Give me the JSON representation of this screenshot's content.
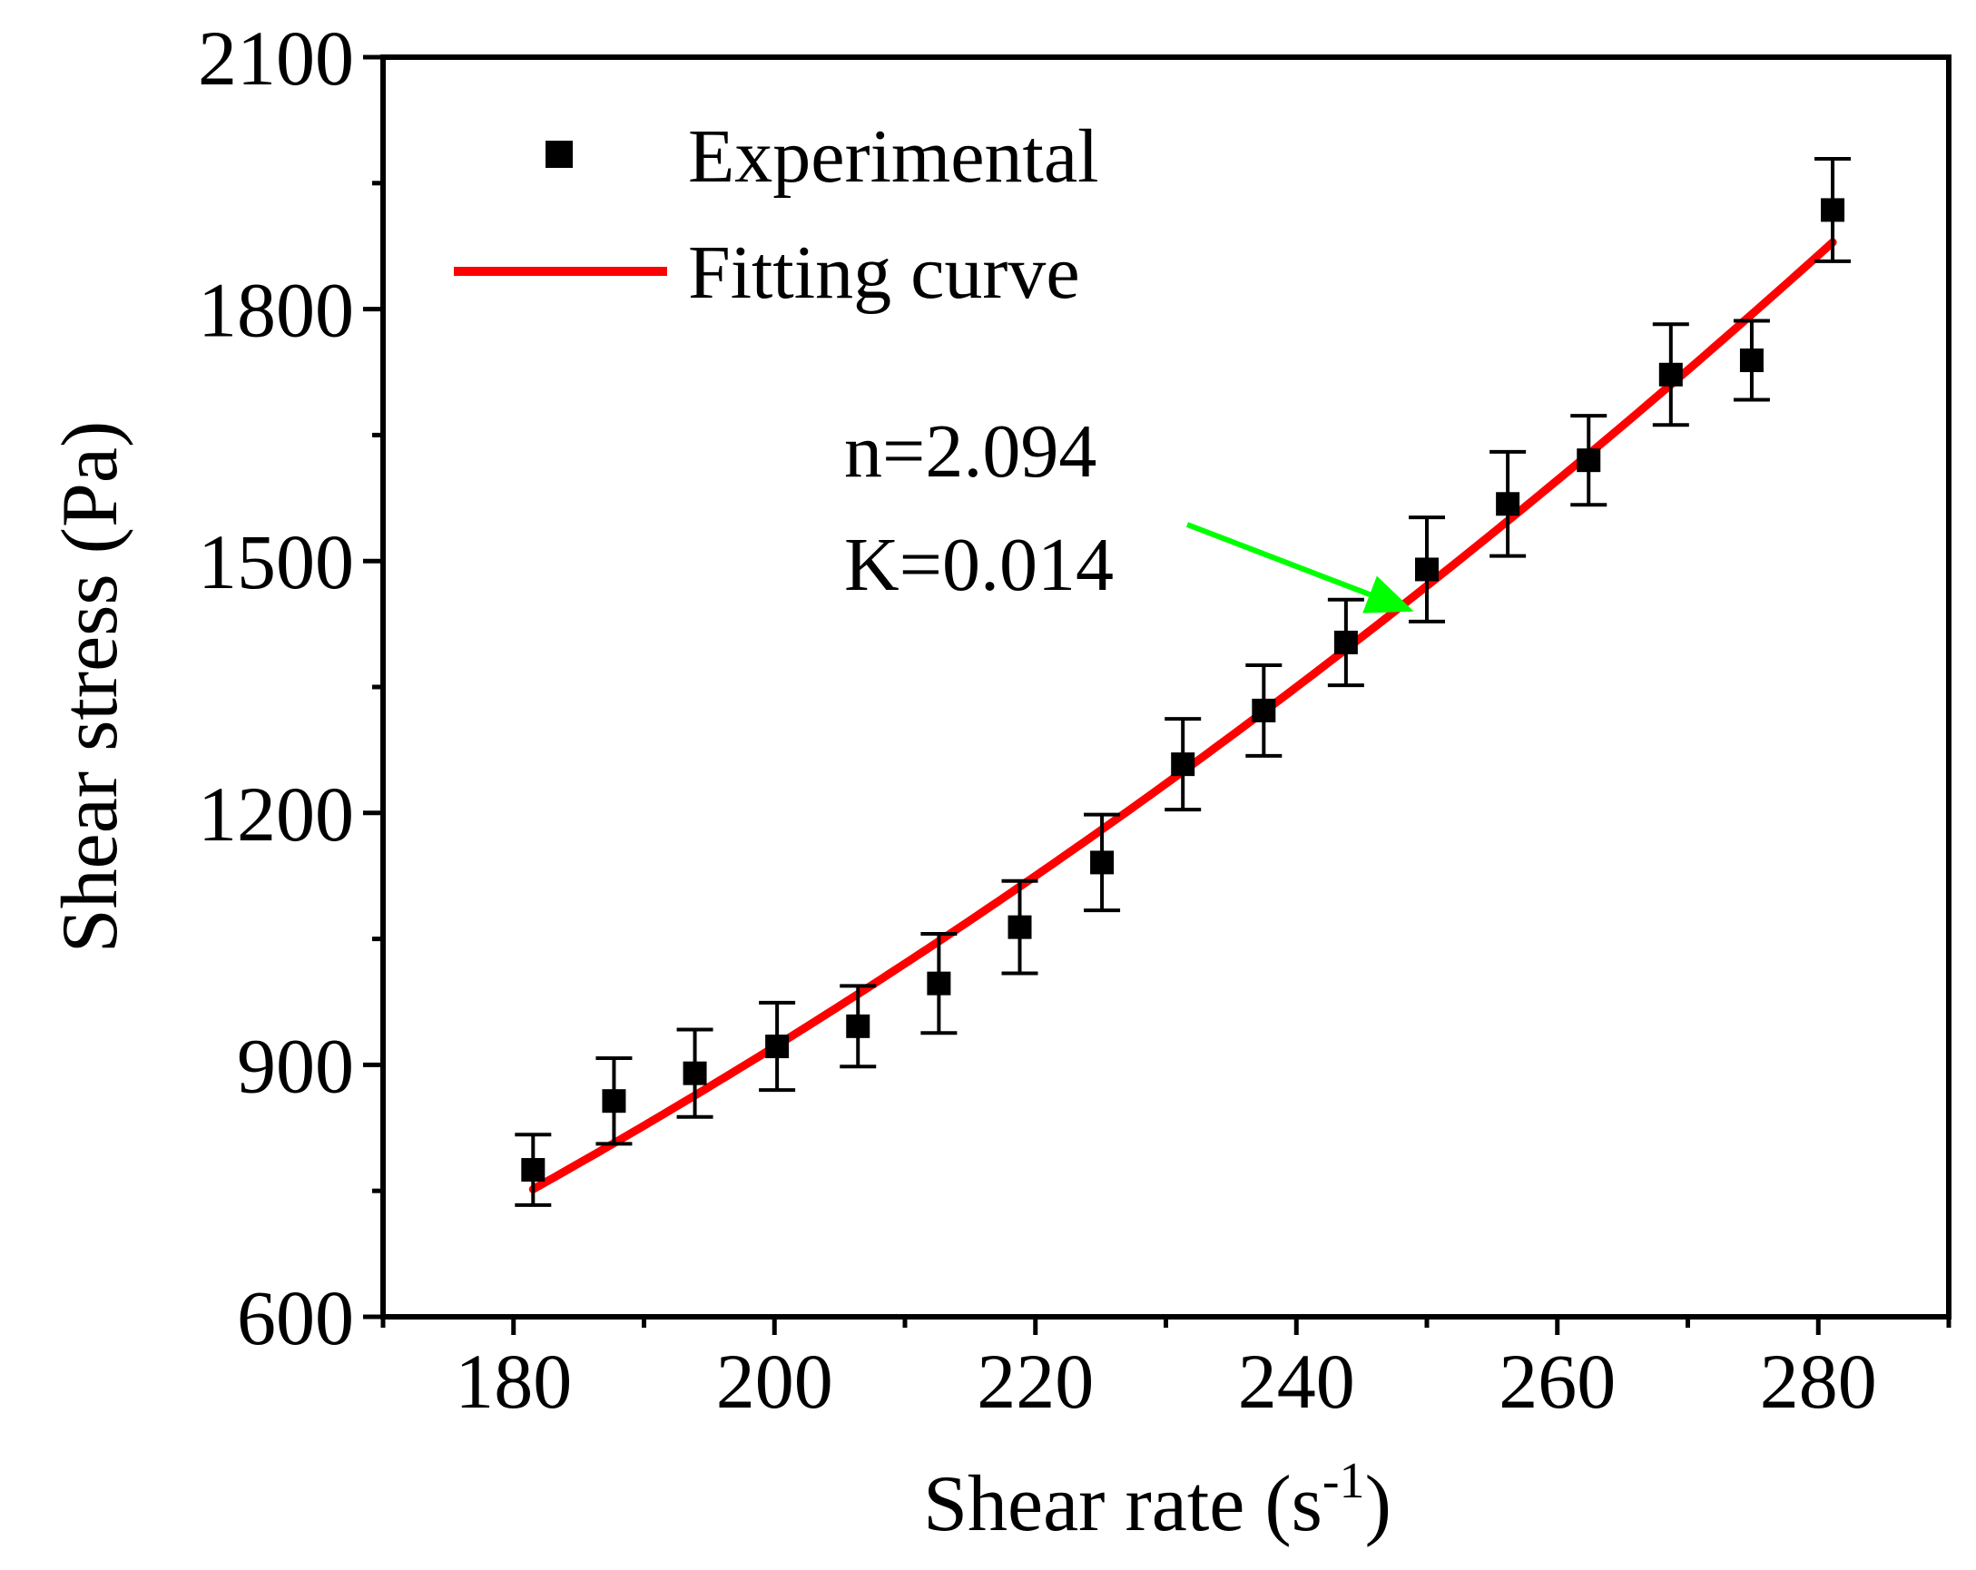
{
  "chart_data": {
    "type": "scatter",
    "title": "",
    "xlabel": "Shear rate (s",
    "xlabel_superscript": "-1",
    "xlabel_suffix": ")",
    "ylabel": "Shear stress (Pa)",
    "xlim": [
      170,
      290
    ],
    "ylim": [
      600,
      2100
    ],
    "xticks": [
      180,
      200,
      220,
      240,
      260,
      280
    ],
    "yticks": [
      600,
      900,
      1200,
      1500,
      1800,
      2100
    ],
    "x_minor_step": 10,
    "y_minor_step": 150,
    "grid": false,
    "legend_position": "top-left",
    "series": [
      {
        "name": "Experimental",
        "kind": "points-with-error-bars",
        "color": "#000000",
        "x": [
          181.5,
          187.7,
          193.9,
          200.2,
          206.4,
          212.6,
          218.8,
          225.1,
          231.3,
          237.5,
          243.8,
          250.0,
          256.2,
          262.4,
          268.7,
          274.9,
          281.1
        ],
        "y": [
          775,
          857,
          890,
          922,
          946,
          997,
          1064,
          1141,
          1258,
          1322,
          1403,
          1490,
          1568,
          1620,
          1722,
          1739,
          1918
        ],
        "error": [
          42,
          51,
          52,
          52,
          48,
          59,
          55,
          57,
          54,
          54,
          51,
          62,
          62,
          53,
          60,
          47,
          61
        ]
      },
      {
        "name": "Fitting curve",
        "kind": "line",
        "color": "#ff0000",
        "model": "tau = K * gamma^n",
        "n": 2.094,
        "K": 0.014,
        "x_range": [
          181.5,
          281.1
        ]
      }
    ],
    "annotations": [
      {
        "lines": [
          "n=2.094",
          "K=0.014"
        ],
        "arrow_color": "#00ff00",
        "arrow_to": [
          249,
          1440
        ]
      }
    ]
  }
}
